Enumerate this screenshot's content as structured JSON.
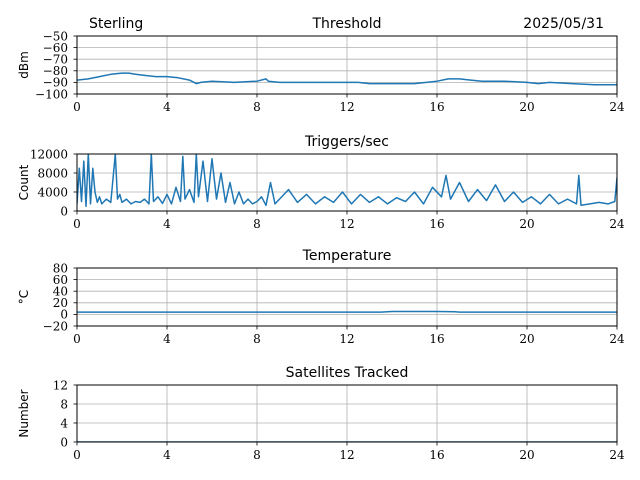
{
  "header": {
    "station": "Sterling",
    "date": "2025/05/31"
  },
  "chart_data": [
    {
      "type": "line",
      "title": "Threshold",
      "ylabel": "dBm",
      "xlim": [
        0,
        24
      ],
      "ylim": [
        -100,
        -50
      ],
      "xticks": [
        "0",
        "4",
        "8",
        "12",
        "16",
        "20",
        "24"
      ],
      "yticks": [
        "−50",
        "−60",
        "−70",
        "−80",
        "−90",
        "−100"
      ],
      "ytick_values": [
        -50,
        -60,
        -70,
        -80,
        -90,
        -100
      ],
      "grid": true,
      "series": [
        {
          "color": "#1f77b4",
          "x": [
            0,
            0.5,
            1,
            1.5,
            2,
            2.3,
            2.6,
            3,
            3.5,
            4,
            4.5,
            5,
            5.3,
            5.5,
            6,
            7,
            8,
            8.4,
            8.5,
            9,
            10,
            11,
            12,
            12.5,
            13,
            14,
            15,
            16,
            16.5,
            17,
            17.5,
            18,
            19,
            20,
            20.5,
            21,
            22,
            23,
            24
          ],
          "y": [
            -88,
            -87,
            -85,
            -83,
            -82,
            -82,
            -83,
            -84,
            -85,
            -85,
            -86,
            -88,
            -91,
            -90,
            -89,
            -90,
            -89,
            -87,
            -89,
            -90,
            -90,
            -90,
            -90,
            -90,
            -91,
            -91,
            -91,
            -89,
            -87,
            -87,
            -88,
            -89,
            -89,
            -90,
            -91,
            -90,
            -91,
            -92,
            -92
          ]
        }
      ]
    },
    {
      "type": "line",
      "title": "Triggers/sec",
      "ylabel": "Count",
      "xlim": [
        0,
        24
      ],
      "ylim": [
        0,
        12000
      ],
      "xticks": [
        "0",
        "4",
        "8",
        "12",
        "16",
        "20",
        "24"
      ],
      "yticks": [
        "12000",
        "8000",
        "4000",
        "0"
      ],
      "ytick_values": [
        12000,
        8000,
        4000,
        0
      ],
      "grid": true,
      "series": [
        {
          "color": "#1f77b4",
          "x": [
            0,
            0.1,
            0.2,
            0.3,
            0.4,
            0.5,
            0.6,
            0.7,
            0.8,
            0.9,
            1.0,
            1.1,
            1.3,
            1.5,
            1.7,
            1.8,
            1.9,
            2.0,
            2.2,
            2.4,
            2.6,
            2.8,
            3.0,
            3.2,
            3.3,
            3.4,
            3.6,
            3.8,
            4.0,
            4.2,
            4.4,
            4.6,
            4.7,
            4.8,
            5.0,
            5.2,
            5.3,
            5.4,
            5.6,
            5.8,
            6.0,
            6.2,
            6.4,
            6.6,
            6.8,
            7.0,
            7.2,
            7.4,
            7.6,
            7.8,
            8.0,
            8.2,
            8.4,
            8.6,
            8.8,
            9.0,
            9.4,
            9.8,
            10.2,
            10.6,
            11.0,
            11.4,
            11.8,
            12.2,
            12.6,
            13.0,
            13.4,
            13.8,
            14.2,
            14.6,
            15.0,
            15.4,
            15.8,
            16.2,
            16.4,
            16.6,
            17.0,
            17.4,
            17.8,
            18.2,
            18.6,
            19.0,
            19.4,
            19.8,
            20.2,
            20.6,
            21.0,
            21.4,
            21.8,
            22.2,
            22.3,
            22.4,
            22.8,
            23.2,
            23.6,
            23.9,
            24.0
          ],
          "y": [
            1500,
            9000,
            2000,
            10500,
            1000,
            12000,
            1500,
            9000,
            4000,
            1800,
            3000,
            1500,
            2500,
            1800,
            12000,
            2500,
            3500,
            1800,
            2500,
            1500,
            2000,
            1800,
            2500,
            1500,
            12000,
            2000,
            3000,
            1600,
            3500,
            1500,
            5000,
            2000,
            11500,
            2500,
            4500,
            1800,
            12000,
            3000,
            10500,
            2000,
            11000,
            2500,
            8000,
            1800,
            6000,
            1500,
            4000,
            1500,
            2500,
            1500,
            2000,
            3000,
            1200,
            6000,
            1500,
            2500,
            4500,
            1800,
            3500,
            1500,
            3000,
            1800,
            4000,
            1500,
            3500,
            1800,
            3000,
            1500,
            2800,
            2000,
            4000,
            1500,
            5000,
            3000,
            7500,
            2500,
            6000,
            2000,
            4500,
            2200,
            5500,
            2000,
            4000,
            1800,
            3000,
            1500,
            3500,
            1500,
            2500,
            1500,
            7500,
            1200,
            1500,
            1800,
            1500,
            2000,
            7000
          ]
        }
      ]
    },
    {
      "type": "line",
      "title": "Temperature",
      "ylabel": "°C",
      "xlim": [
        0,
        24
      ],
      "ylim": [
        -20,
        80
      ],
      "xticks": [
        "0",
        "4",
        "8",
        "12",
        "16",
        "20",
        "24"
      ],
      "yticks": [
        "80",
        "60",
        "40",
        "20",
        "0",
        "−20"
      ],
      "ytick_values": [
        80,
        60,
        40,
        20,
        0,
        -20
      ],
      "grid": true,
      "series": [
        {
          "color": "#1f77b4",
          "x": [
            0,
            4,
            8,
            12,
            13.5,
            14,
            15,
            16,
            16.8,
            17,
            20,
            24
          ],
          "y": [
            4,
            4,
            4,
            4,
            4,
            5,
            5,
            5,
            4.5,
            4,
            4,
            4
          ]
        }
      ]
    },
    {
      "type": "line",
      "title": "Satellites Tracked",
      "ylabel": "Number",
      "xlim": [
        0,
        24
      ],
      "ylim": [
        0,
        12
      ],
      "xticks": [
        "0",
        "4",
        "8",
        "12",
        "16",
        "20",
        "24"
      ],
      "yticks": [
        "12",
        "8",
        "4",
        "0"
      ],
      "ytick_values": [
        12,
        8,
        4,
        0
      ],
      "grid": true,
      "series": [
        {
          "color": "#1f77b4",
          "x": [
            0,
            24
          ],
          "y": [
            0,
            0
          ]
        }
      ]
    }
  ]
}
